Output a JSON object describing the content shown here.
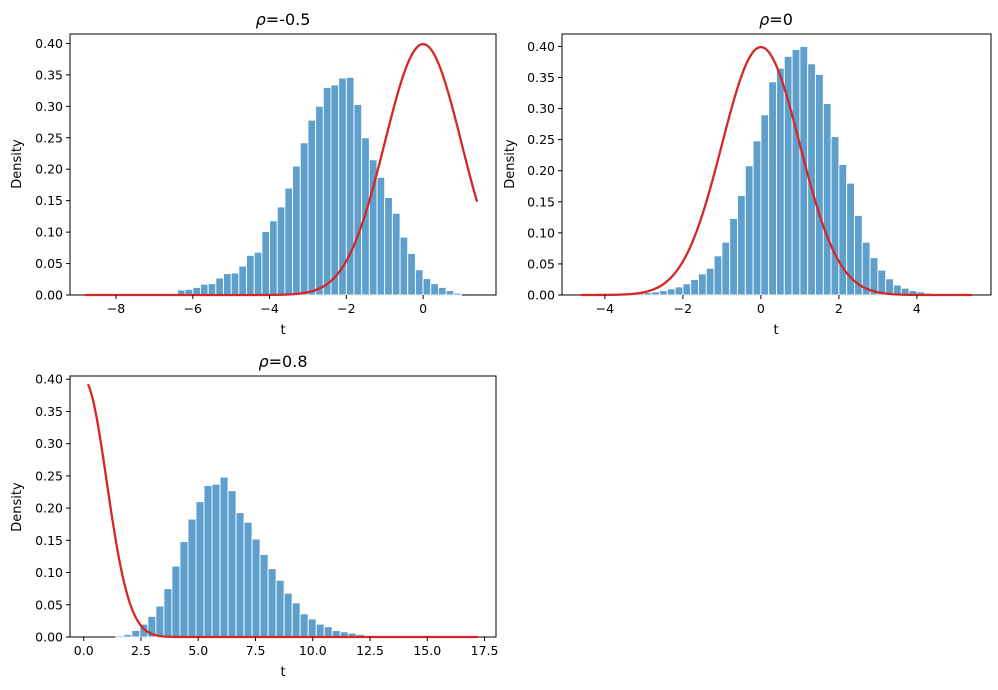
{
  "chart_data": [
    {
      "type": "bar",
      "title_prefix": "ρ",
      "title_suffix": "=-0.5",
      "xlabel": "t",
      "ylabel": "Density",
      "xlim": [
        -9.2,
        1.9
      ],
      "ylim": [
        0,
        0.415
      ],
      "xticks": [
        -8,
        -6,
        -4,
        -2,
        0
      ],
      "xtick_labels": [
        "−8",
        "−6",
        "−4",
        "−2",
        "0"
      ],
      "yticks": [
        0,
        0.05,
        0.1,
        0.15,
        0.2,
        0.25,
        0.3,
        0.35,
        0.4
      ],
      "ytick_labels": [
        "0.00",
        "0.05",
        "0.10",
        "0.15",
        "0.20",
        "0.25",
        "0.30",
        "0.35",
        "0.40"
      ],
      "histogram": {
        "bin_start": -6.4,
        "bin_width": 0.2,
        "values": [
          0.008,
          0.009,
          0.012,
          0.017,
          0.018,
          0.027,
          0.034,
          0.035,
          0.046,
          0.063,
          0.068,
          0.101,
          0.118,
          0.14,
          0.17,
          0.205,
          0.242,
          0.278,
          0.3,
          0.33,
          0.334,
          0.345,
          0.346,
          0.303,
          0.25,
          0.215,
          0.187,
          0.155,
          0.13,
          0.092,
          0.066,
          0.04,
          0.026,
          0.018,
          0.012,
          0.007,
          0.003
        ]
      },
      "curve": {
        "label": "standard normal pdf",
        "mean": 0,
        "sd": 1,
        "x_range": [
          -8.8,
          1.4
        ]
      }
    },
    {
      "type": "bar",
      "title_prefix": "ρ",
      "title_suffix": "=0",
      "xlabel": "t",
      "ylabel": "Density",
      "xlim": [
        -5.1,
        5.9
      ],
      "ylim": [
        0,
        0.42
      ],
      "xticks": [
        -4,
        -2,
        0,
        2,
        4
      ],
      "xtick_labels": [
        "−4",
        "−2",
        "0",
        "2",
        "4"
      ],
      "yticks": [
        0,
        0.05,
        0.1,
        0.15,
        0.2,
        0.25,
        0.3,
        0.35,
        0.4
      ],
      "ytick_labels": [
        "0.00",
        "0.05",
        "0.10",
        "0.15",
        "0.20",
        "0.25",
        "0.30",
        "0.35",
        "0.40"
      ],
      "histogram": {
        "bin_start": -3.4,
        "bin_width": 0.2,
        "values": [
          0.002,
          0.003,
          0.004,
          0.005,
          0.007,
          0.01,
          0.013,
          0.018,
          0.025,
          0.034,
          0.043,
          0.063,
          0.085,
          0.123,
          0.16,
          0.208,
          0.248,
          0.29,
          0.343,
          0.365,
          0.384,
          0.395,
          0.4,
          0.372,
          0.355,
          0.308,
          0.255,
          0.21,
          0.18,
          0.128,
          0.085,
          0.06,
          0.04,
          0.026,
          0.016,
          0.011,
          0.007,
          0.005,
          0.003,
          0.002
        ]
      },
      "curve": {
        "label": "standard normal pdf",
        "mean": 0,
        "sd": 1,
        "x_range": [
          -4.6,
          5.4
        ]
      }
    },
    {
      "type": "bar",
      "title_prefix": "ρ",
      "title_suffix": "=0.8",
      "xlabel": "t",
      "ylabel": "Density",
      "xlim": [
        -0.6,
        18.0
      ],
      "ylim": [
        0,
        0.405
      ],
      "xticks": [
        0,
        2.5,
        5,
        7.5,
        10,
        12.5,
        15,
        17.5
      ],
      "xtick_labels": [
        "0.0",
        "2.5",
        "5.0",
        "7.5",
        "10.0",
        "12.5",
        "15.0",
        "17.5"
      ],
      "yticks": [
        0,
        0.05,
        0.1,
        0.15,
        0.2,
        0.25,
        0.3,
        0.35,
        0.4
      ],
      "ytick_labels": [
        "0.00",
        "0.05",
        "0.10",
        "0.15",
        "0.20",
        "0.25",
        "0.30",
        "0.35",
        "0.40"
      ],
      "histogram": {
        "bin_start": 1.4,
        "bin_width": 0.35,
        "values": [
          0.002,
          0.004,
          0.01,
          0.02,
          0.032,
          0.048,
          0.075,
          0.11,
          0.148,
          0.183,
          0.21,
          0.235,
          0.237,
          0.248,
          0.227,
          0.193,
          0.178,
          0.152,
          0.128,
          0.106,
          0.088,
          0.068,
          0.053,
          0.036,
          0.028,
          0.02,
          0.016,
          0.01,
          0.008,
          0.006,
          0.004,
          0.002,
          0.001,
          0.001
        ]
      },
      "curve": {
        "label": "standard normal pdf",
        "mean": 0,
        "sd": 1,
        "x_range": [
          0.2,
          17.2
        ]
      }
    }
  ]
}
